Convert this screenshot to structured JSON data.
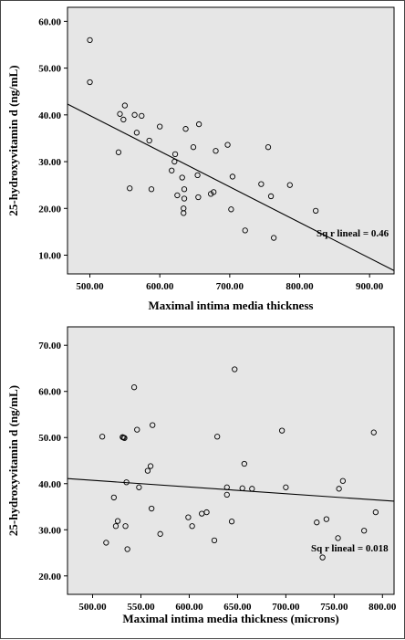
{
  "chart_data": [
    {
      "type": "scatter",
      "xlabel": "Maximal intima media thickness",
      "ylabel": "25-hydroxyvitamin d (ng/mL)",
      "xlim": [
        468,
        935
      ],
      "ylim": [
        6,
        63
      ],
      "x_ticks": [
        500,
        600,
        700,
        800,
        900
      ],
      "x_tick_labels": [
        "500.00",
        "600.00",
        "700.00",
        "800.00",
        "900.00"
      ],
      "y_ticks": [
        10,
        20,
        30,
        40,
        50,
        60
      ],
      "y_tick_labels": [
        "10.00",
        "20.00",
        "30.00",
        "40.00",
        "50.00",
        "60.00"
      ],
      "annotation": "Sq r lineal = 0.46",
      "fit_line": [
        [
          468,
          42.3
        ],
        [
          935,
          6.7
        ]
      ],
      "points": [
        [
          500,
          56
        ],
        [
          500,
          47
        ],
        [
          541,
          32
        ],
        [
          543,
          40.2
        ],
        [
          548,
          39
        ],
        [
          550,
          42
        ],
        [
          557,
          24.3
        ],
        [
          564,
          40
        ],
        [
          567,
          36.2
        ],
        [
          574,
          39.8
        ],
        [
          585,
          34.5
        ],
        [
          588,
          24.1
        ],
        [
          600,
          37.5
        ],
        [
          617,
          28.1
        ],
        [
          621,
          30
        ],
        [
          622,
          31.6
        ],
        [
          625,
          22.8
        ],
        [
          632,
          26.6
        ],
        [
          634,
          20
        ],
        [
          634,
          19
        ],
        [
          635,
          22.1
        ],
        [
          635,
          24.1
        ],
        [
          637,
          37
        ],
        [
          648,
          33.1
        ],
        [
          654,
          27.1
        ],
        [
          655,
          22.4
        ],
        [
          656,
          38
        ],
        [
          673,
          23.1
        ],
        [
          677,
          23.5
        ],
        [
          680,
          32.3
        ],
        [
          697,
          33.6
        ],
        [
          702,
          19.8
        ],
        [
          704,
          26.8
        ],
        [
          722,
          15.3
        ],
        [
          745,
          25.2
        ],
        [
          755,
          33.1
        ],
        [
          759,
          22.6
        ],
        [
          763,
          13.7
        ],
        [
          786,
          25
        ],
        [
          823,
          19.5
        ]
      ]
    },
    {
      "type": "scatter",
      "xlabel": "Maximal intima media thickness (microns)",
      "ylabel": "25-hydroxyvitamin d (ng/mL)",
      "xlim": [
        474,
        812
      ],
      "ylim": [
        16,
        74
      ],
      "x_ticks": [
        500,
        550,
        600,
        650,
        700,
        750,
        800
      ],
      "x_tick_labels": [
        "500.00",
        "550.00",
        "600.00",
        "650.00",
        "700.00",
        "750.00",
        "800.00"
      ],
      "y_ticks": [
        20,
        30,
        40,
        50,
        60,
        70
      ],
      "y_tick_labels": [
        "20.00",
        "30.00",
        "40.00",
        "50.00",
        "60.00",
        "70.00"
      ],
      "annotation": "Sq r lineal = 0.018",
      "fit_line": [
        [
          474,
          41.1
        ],
        [
          812,
          36.2
        ]
      ],
      "points": [
        [
          510,
          50.2
        ],
        [
          514,
          27.2
        ],
        [
          522,
          37
        ],
        [
          524,
          30.8
        ],
        [
          526,
          31.9
        ],
        [
          531,
          50.1
        ],
        [
          532,
          50
        ],
        [
          533,
          49.9
        ],
        [
          534,
          30.8
        ],
        [
          535,
          40.3
        ],
        [
          536,
          25.8
        ],
        [
          543,
          60.9
        ],
        [
          546,
          51.7
        ],
        [
          548,
          39.2
        ],
        [
          557,
          42.8
        ],
        [
          560,
          43.8
        ],
        [
          561,
          34.6
        ],
        [
          562,
          52.7
        ],
        [
          570,
          29.1
        ],
        [
          599,
          32.7
        ],
        [
          603,
          30.8
        ],
        [
          613,
          33.5
        ],
        [
          618,
          33.8
        ],
        [
          626,
          27.7
        ],
        [
          629,
          50.2
        ],
        [
          639,
          39.2
        ],
        [
          639,
          37.6
        ],
        [
          644,
          31.8
        ],
        [
          647,
          64.8
        ],
        [
          655,
          39
        ],
        [
          657,
          44.3
        ],
        [
          665,
          38.9
        ],
        [
          696,
          51.5
        ],
        [
          700,
          39.2
        ],
        [
          732,
          31.6
        ],
        [
          738,
          24
        ],
        [
          742,
          32.3
        ],
        [
          754,
          28.2
        ],
        [
          755,
          38.9
        ],
        [
          759,
          40.6
        ],
        [
          781,
          29.8
        ],
        [
          791,
          51.1
        ],
        [
          793,
          33.8
        ]
      ]
    }
  ]
}
